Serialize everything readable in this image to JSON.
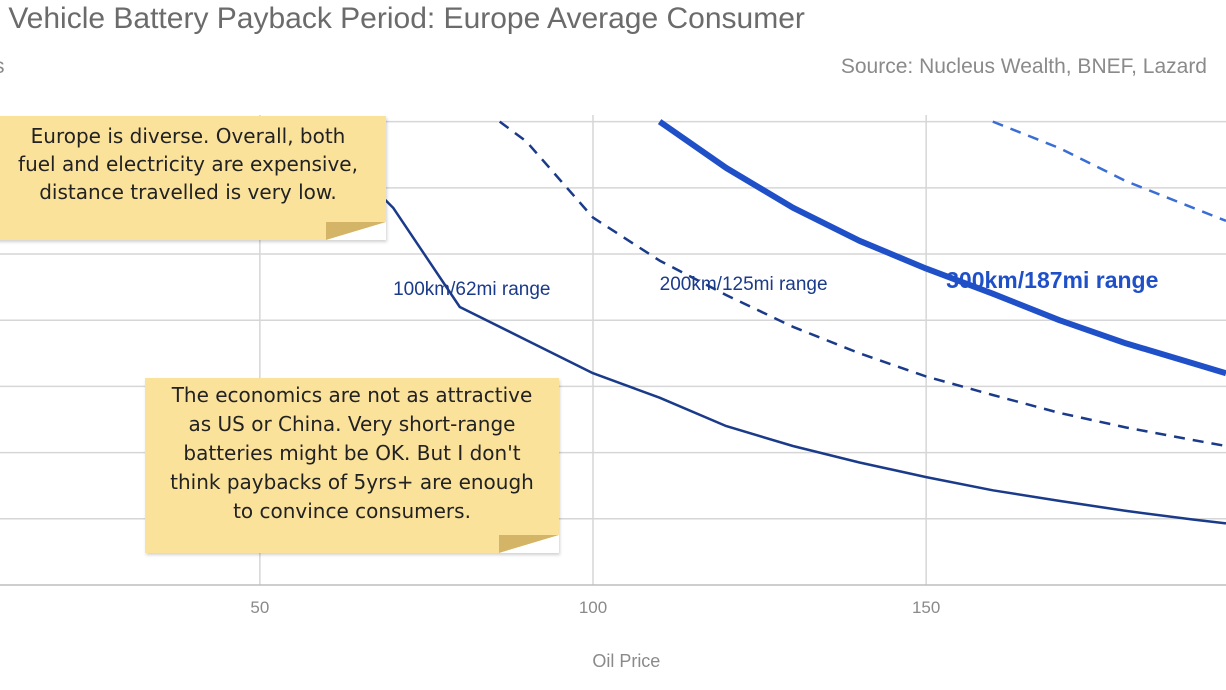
{
  "chart_data": {
    "type": "line",
    "title": "ctric Vehicle Battery Payback Period: Europe Average Consumer",
    "ylabel_fragment": "s",
    "source": "Source: Nucleus Wealth, BNEF, Lazard",
    "xlabel": "Oil Price",
    "xlim": [
      11,
      195
    ],
    "ylim": [
      0,
      7.1
    ],
    "x_ticks": [
      50,
      100,
      150
    ],
    "y_gridlines": [
      1,
      2,
      3,
      4,
      5,
      6,
      7
    ],
    "grid": true,
    "series": [
      {
        "name": "100km/62mi range",
        "color": "#1a3a8a",
        "style": "solid",
        "width": 2.5,
        "label_at": [
          70,
          4.38
        ],
        "points": [
          [
            60,
            6.7
          ],
          [
            70,
            5.7
          ],
          [
            80,
            4.2
          ],
          [
            90,
            3.7
          ],
          [
            100,
            3.2
          ],
          [
            110,
            2.83
          ],
          [
            120,
            2.4
          ],
          [
            130,
            2.1
          ],
          [
            140,
            1.85
          ],
          [
            150,
            1.63
          ],
          [
            160,
            1.43
          ],
          [
            170,
            1.27
          ],
          [
            180,
            1.12
          ],
          [
            190,
            0.99
          ],
          [
            195,
            0.93
          ]
        ]
      },
      {
        "name": "200km/125mi range",
        "color": "#1a3a8a",
        "style": "dashed",
        "width": 2.5,
        "label_at": [
          110,
          4.46
        ],
        "points": [
          [
            86,
            7.0
          ],
          [
            90,
            6.7
          ],
          [
            100,
            5.55
          ],
          [
            110,
            4.9
          ],
          [
            120,
            4.38
          ],
          [
            130,
            3.9
          ],
          [
            140,
            3.5
          ],
          [
            150,
            3.15
          ],
          [
            160,
            2.87
          ],
          [
            170,
            2.6
          ],
          [
            180,
            2.38
          ],
          [
            190,
            2.19
          ],
          [
            195,
            2.1
          ]
        ]
      },
      {
        "name": "300km/187mi range",
        "color": "#1f50c8",
        "style": "solid",
        "width": 6,
        "bold_label": true,
        "label_at": [
          153,
          4.49
        ],
        "points": [
          [
            110,
            7.0
          ],
          [
            120,
            6.3
          ],
          [
            130,
            5.7
          ],
          [
            140,
            5.2
          ],
          [
            150,
            4.78
          ],
          [
            160,
            4.4
          ],
          [
            170,
            4.0
          ],
          [
            180,
            3.65
          ],
          [
            190,
            3.35
          ],
          [
            195,
            3.2
          ]
        ]
      },
      {
        "name": "",
        "color": "#3a6ed4",
        "style": "dashed",
        "width": 2.5,
        "points": [
          [
            160,
            7.0
          ],
          [
            170,
            6.6
          ],
          [
            180,
            6.1
          ],
          [
            190,
            5.7
          ],
          [
            195,
            5.5
          ]
        ]
      }
    ]
  },
  "notes": {
    "note_1_lines": [
      "Europe is diverse. Overall, both",
      "fuel and electricity are expensive,",
      "distance travelled is very low."
    ],
    "note_2_lines": [
      "The economics are not as attractive",
      "as US or China. Very short-range",
      "batteries might be OK. But I don't",
      "think paybacks of 5yrs+ are enough",
      "to convince consumers."
    ]
  }
}
